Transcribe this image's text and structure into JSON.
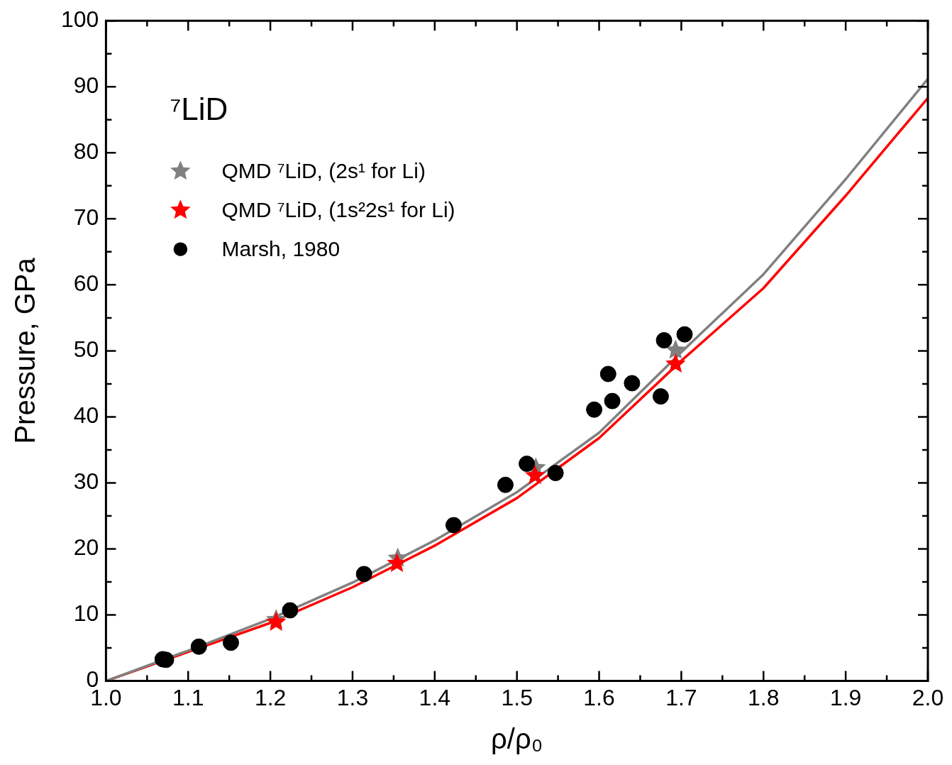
{
  "chart_data": {
    "type": "scatter",
    "xlabel": "ρ/ρ₀",
    "ylabel": "Pressure, GPa",
    "annotations": [
      "⁷LiD"
    ],
    "xlim": [
      1,
      2
    ],
    "xticks": [
      {
        "value": 1,
        "label": "1.0"
      },
      1.1,
      1.2,
      1.3,
      1.4,
      1.5,
      1.6,
      1.7,
      1.8,
      1.9,
      {
        "value": 2,
        "label": "2.0"
      }
    ],
    "ylim": [
      0,
      100
    ],
    "yticks": [
      0,
      10,
      20,
      30,
      40,
      50,
      60,
      70,
      80,
      90,
      100
    ],
    "grid": false,
    "legend": "top left",
    "series": [
      {
        "name": "QMD ⁷LiD, (2s¹ for Li)",
        "color": "#808080",
        "marker": "star",
        "x": [
          1.207,
          1.355,
          1.523,
          1.693
        ],
        "values": [
          9.3,
          18.6,
          32.3,
          50.1
        ]
      },
      {
        "name": "QMD ⁷LiD, (1s²2s¹ for Li)",
        "color": "#ff0000",
        "marker": "star",
        "x": [
          1.207,
          1.354,
          1.522,
          1.693
        ],
        "values": [
          8.9,
          17.8,
          31.1,
          48.0
        ]
      },
      {
        "name": "Marsh, 1980",
        "color": "#000000",
        "marker": "circle",
        "x": [
          1.069,
          1.073,
          1.113,
          1.152,
          1.224,
          1.314,
          1.423,
          1.486,
          1.512,
          1.547,
          1.594,
          1.611,
          1.616,
          1.64,
          1.675,
          1.679,
          1.704
        ],
        "values": [
          3.3,
          3.2,
          5.2,
          5.8,
          10.7,
          16.2,
          23.6,
          29.7,
          32.9,
          31.5,
          41.1,
          46.5,
          42.4,
          45.1,
          43.1,
          51.6,
          52.5
        ]
      },
      {
        "type": "line",
        "color": "#808080",
        "marker": "none",
        "line_style": "solid",
        "x": [
          1.0,
          1.1,
          1.2,
          1.3,
          1.4,
          1.5,
          1.6,
          1.7,
          1.8,
          1.9,
          2.0
        ],
        "values": [
          0,
          4.6,
          9.4,
          14.9,
          21.3,
          28.6,
          37.6,
          49.8,
          61.6,
          76,
          91.2
        ]
      },
      {
        "type": "line",
        "color": "#ff0000",
        "marker": "none",
        "line_style": "solid",
        "x": [
          1.0,
          1.1,
          1.2,
          1.3,
          1.4,
          1.5,
          1.6,
          1.7,
          1.8,
          1.9,
          2.0
        ],
        "values": [
          0,
          4.4,
          8.8,
          14.2,
          20.5,
          27.7,
          36.8,
          48.5,
          59.5,
          73.5,
          88.3
        ]
      }
    ]
  }
}
